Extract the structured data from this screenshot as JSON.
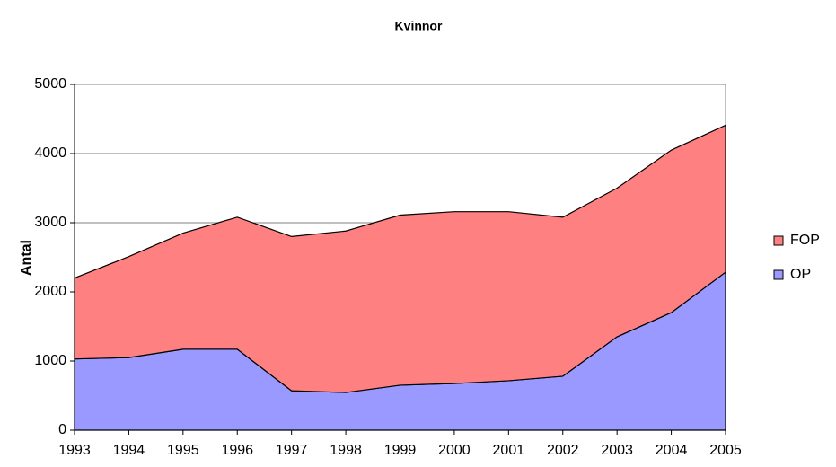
{
  "chart_data": {
    "type": "stacked-area",
    "title": "Kvinnor",
    "y_label": "Antal",
    "categories": [
      "1993",
      "1994",
      "1995",
      "1996",
      "1997",
      "1998",
      "1999",
      "2000",
      "2001",
      "2002",
      "2003",
      "2004",
      "2005"
    ],
    "series": [
      {
        "name": "OP",
        "color": "#9999ff",
        "values": [
          1030,
          1050,
          1170,
          1170,
          570,
          545,
          650,
          675,
          715,
          780,
          1350,
          1700,
          2285
        ]
      },
      {
        "name": "FOP",
        "color": "#ff8080",
        "values": [
          1170,
          1460,
          1680,
          1910,
          2230,
          2335,
          2460,
          2485,
          2445,
          2300,
          2150,
          2350,
          2125
        ]
      }
    ],
    "ylim": [
      0,
      5000
    ],
    "yticks": [
      0,
      1000,
      2000,
      3000,
      4000,
      5000
    ],
    "grid": true,
    "legend": "right"
  }
}
